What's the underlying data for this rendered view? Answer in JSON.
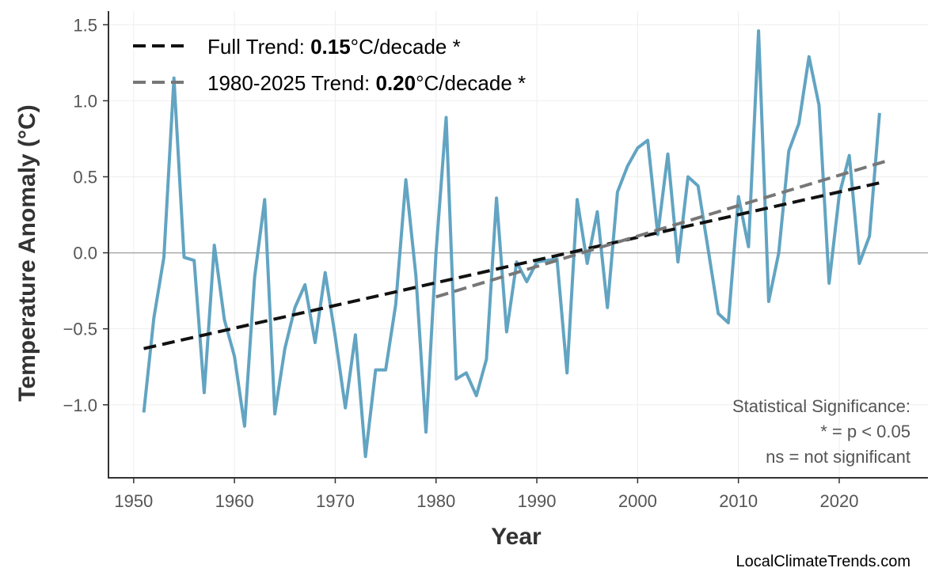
{
  "chart_data": {
    "type": "line",
    "xlabel": "Year",
    "ylabel": "Temperature Anomaly (°C)",
    "xlim": [
      1947.5,
      2028.8
    ],
    "ylim": [
      -1.48,
      1.59
    ],
    "xticks": [
      1950,
      1960,
      1970,
      1980,
      1990,
      2000,
      2010,
      2020
    ],
    "yticks": [
      -1.0,
      -0.5,
      0.0,
      0.5,
      1.0,
      1.5
    ],
    "ytick_labels": [
      "−1.0",
      "−0.5",
      "0.0",
      "0.5",
      "1.0",
      "1.5"
    ],
    "grid": true,
    "legend_placement": "top-left",
    "series": [
      {
        "color": "#5a9fbf",
        "x": [
          1951,
          1952,
          1953,
          1954,
          1955,
          1956,
          1957,
          1958,
          1959,
          1960,
          1961,
          1962,
          1963,
          1964,
          1965,
          1966,
          1967,
          1968,
          1969,
          1970,
          1971,
          1972,
          1973,
          1974,
          1975,
          1976,
          1977,
          1978,
          1979,
          1980,
          1981,
          1982,
          1983,
          1984,
          1985,
          1986,
          1987,
          1988,
          1989,
          1990,
          1991,
          1992,
          1993,
          1994,
          1995,
          1996,
          1997,
          1998,
          1999,
          2000,
          2001,
          2002,
          2003,
          2004,
          2005,
          2006,
          2007,
          2008,
          2009,
          2010,
          2011,
          2012,
          2013,
          2014,
          2015,
          2016,
          2017,
          2018,
          2019,
          2020,
          2021,
          2022,
          2023,
          2024
        ],
        "y": [
          -1.05,
          -0.43,
          -0.03,
          1.15,
          -0.03,
          -0.05,
          -0.92,
          0.05,
          -0.44,
          -0.68,
          -1.14,
          -0.16,
          0.35,
          -1.06,
          -0.63,
          -0.36,
          -0.21,
          -0.59,
          -0.13,
          -0.55,
          -1.02,
          -0.54,
          -1.34,
          -0.77,
          -0.77,
          -0.34,
          0.48,
          -0.15,
          -1.18,
          0.0,
          0.89,
          -0.83,
          -0.79,
          -0.94,
          -0.7,
          0.36,
          -0.52,
          -0.06,
          -0.19,
          -0.06,
          -0.05,
          -0.04,
          -0.79,
          0.35,
          -0.07,
          0.27,
          -0.36,
          0.4,
          0.57,
          0.69,
          0.74,
          0.12,
          0.65,
          -0.06,
          0.5,
          0.44,
          0.02,
          -0.4,
          -0.46,
          0.37,
          0.04,
          1.46,
          -0.32,
          0.0,
          0.67,
          0.85,
          1.29,
          0.97,
          -0.2,
          0.38,
          0.64,
          -0.07,
          0.11,
          0.92
        ]
      }
    ],
    "trends": [
      {
        "label_prefix": "Full Trend: ",
        "value": "0.15",
        "label_suffix": "°C/decade *",
        "color": "#111111",
        "x": [
          1951,
          2024
        ],
        "y": [
          -0.63,
          0.46
        ]
      },
      {
        "label_prefix": "1980-2025 Trend: ",
        "value": "0.20",
        "label_suffix": "°C/decade *",
        "color": "#777777",
        "x": [
          1980,
          2025
        ],
        "y": [
          -0.29,
          0.61
        ]
      }
    ],
    "zero_line": 0.0
  },
  "annotation": {
    "line1": "Statistical Significance:",
    "line2": "* = p < 0.05",
    "line3": "ns = not significant"
  },
  "watermark": "LocalClimateTrends.com"
}
